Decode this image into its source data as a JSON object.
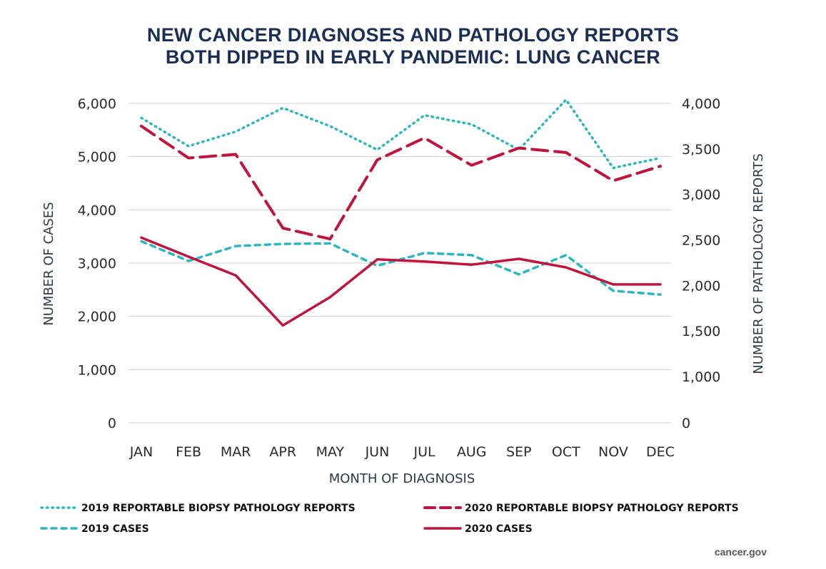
{
  "title_lines": [
    "NEW CANCER DIAGNOSES AND PATHOLOGY REPORTS",
    "BOTH DIPPED IN EARLY PANDEMIC: LUNG CANCER"
  ],
  "source": "cancer.gov",
  "colors": {
    "teal": "#2bb6c0",
    "crimson": "#c0143c",
    "title": "#1b2f55"
  },
  "chart_data": {
    "type": "line",
    "title": "NEW CANCER DIAGNOSES AND PATHOLOGY REPORTS BOTH DIPPED IN EARLY PANDEMIC: LUNG CANCER",
    "xlabel": "MONTH OF DIAGNOSIS",
    "ylabel": "NUMBER OF CASES",
    "ylabel_right": "NUMBER OF PATHOLOGY REPORTS",
    "categories": [
      "JAN",
      "FEB",
      "MAR",
      "APR",
      "MAY",
      "JUN",
      "JUL",
      "AUG",
      "SEP",
      "OCT",
      "NOV",
      "DEC"
    ],
    "ylim": [
      0,
      6000
    ],
    "yticks": [
      0,
      1000,
      2000,
      3000,
      4000,
      5000,
      6000
    ],
    "ytick_labels": [
      "0",
      "1,000",
      "2,000",
      "3,000",
      "4,000",
      "5,000",
      "6,000"
    ],
    "yticks_right": [
      0,
      1000,
      1500,
      2000,
      2500,
      3000,
      3500,
      4000
    ],
    "ytick_labels_right": [
      "0",
      "1,000",
      "1,500",
      "2,000",
      "2,500",
      "3,000",
      "3,500",
      "4,000"
    ],
    "grid": "horizontal",
    "legend_position": "bottom",
    "series": [
      {
        "name": "2019 REPORTABLE BIOPSY PATHOLOGY REPORTS",
        "axis": "right",
        "style": "dotted",
        "color": "#2bb6c0",
        "values": [
          3840,
          3530,
          3690,
          3950,
          3750,
          3490,
          3870,
          3770,
          3490,
          4040,
          3290,
          3400
        ]
      },
      {
        "name": "2020 REPORTABLE BIOPSY PATHOLOGY REPORTS",
        "axis": "right",
        "style": "dashed",
        "color": "#c0143c",
        "values": [
          3750,
          3400,
          3440,
          2630,
          2510,
          3380,
          3620,
          3320,
          3510,
          3460,
          3150,
          3310
        ]
      },
      {
        "name": "2019 CASES",
        "axis": "left",
        "style": "short-dash",
        "color": "#2bb6c0",
        "values": [
          3410,
          3040,
          3320,
          3360,
          3370,
          2950,
          3190,
          3150,
          2790,
          3150,
          2480,
          2410
        ]
      },
      {
        "name": "2020 CASES",
        "axis": "left",
        "style": "solid",
        "color": "#c0143c",
        "values": [
          3480,
          3120,
          2770,
          1830,
          2360,
          3070,
          3030,
          2970,
          3080,
          2920,
          2600,
          2600
        ]
      }
    ]
  }
}
